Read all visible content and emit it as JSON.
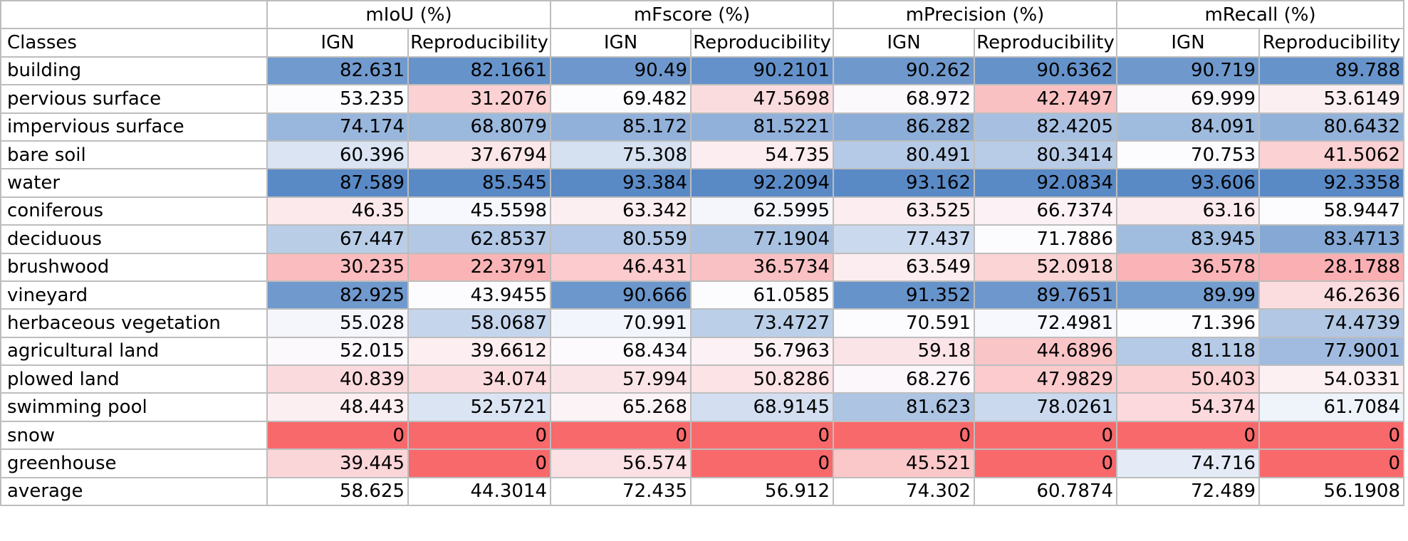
{
  "metric_groups": [
    "mIoU (%)",
    "mFscore (%)",
    "mPrecision (%)",
    "mRecall (%)"
  ],
  "row_header_label": "Classes",
  "sub_headers": [
    "IGN",
    "Reproducibility",
    "IGN",
    "Reproducibility",
    "IGN",
    "Reproducibility",
    "IGN",
    "Reproducibility"
  ],
  "rows": [
    {
      "label": "building",
      "values": [
        "82.631",
        "82.1661",
        "90.49",
        "90.2101",
        "90.262",
        "90.6362",
        "90.719",
        "89.788"
      ]
    },
    {
      "label": "pervious surface",
      "values": [
        "53.235",
        "31.2076",
        "69.482",
        "47.5698",
        "68.972",
        "42.7497",
        "69.999",
        "53.6149"
      ]
    },
    {
      "label": "impervious surface",
      "values": [
        "74.174",
        "68.8079",
        "85.172",
        "81.5221",
        "86.282",
        "82.4205",
        "84.091",
        "80.6432"
      ]
    },
    {
      "label": "bare soil",
      "values": [
        "60.396",
        "37.6794",
        "75.308",
        "54.735",
        "80.491",
        "80.3414",
        "70.753",
        "41.5062"
      ]
    },
    {
      "label": "water",
      "values": [
        "87.589",
        "85.545",
        "93.384",
        "92.2094",
        "93.162",
        "92.0834",
        "93.606",
        "92.3358"
      ]
    },
    {
      "label": "coniferous",
      "values": [
        "46.35",
        "45.5598",
        "63.342",
        "62.5995",
        "63.525",
        "66.7374",
        "63.16",
        "58.9447"
      ]
    },
    {
      "label": "deciduous",
      "values": [
        "67.447",
        "62.8537",
        "80.559",
        "77.1904",
        "77.437",
        "71.7886",
        "83.945",
        "83.4713"
      ]
    },
    {
      "label": "brushwood",
      "values": [
        "30.235",
        "22.3791",
        "46.431",
        "36.5734",
        "63.549",
        "52.0918",
        "36.578",
        "28.1788"
      ]
    },
    {
      "label": "vineyard",
      "values": [
        "82.925",
        "43.9455",
        "90.666",
        "61.0585",
        "91.352",
        "89.7651",
        "89.99",
        "46.2636"
      ]
    },
    {
      "label": "herbaceous vegetation",
      "values": [
        "55.028",
        "58.0687",
        "70.991",
        "73.4727",
        "70.591",
        "72.4981",
        "71.396",
        "74.4739"
      ]
    },
    {
      "label": "agricultural land",
      "values": [
        "52.015",
        "39.6612",
        "68.434",
        "56.7963",
        "59.18",
        "44.6896",
        "81.118",
        "77.9001"
      ]
    },
    {
      "label": "plowed land",
      "values": [
        "40.839",
        "34.074",
        "57.994",
        "50.8286",
        "68.276",
        "47.9829",
        "50.403",
        "54.0331"
      ]
    },
    {
      "label": "swimming pool",
      "values": [
        "48.443",
        "52.5721",
        "65.268",
        "68.9145",
        "81.623",
        "78.0261",
        "54.374",
        "61.7084"
      ]
    },
    {
      "label": "snow",
      "values": [
        "0",
        "0",
        "0",
        "0",
        "0",
        "0",
        "0",
        "0"
      ]
    },
    {
      "label": "greenhouse",
      "values": [
        "39.445",
        "0",
        "56.574",
        "0",
        "45.521",
        "0",
        "74.716",
        "0"
      ]
    },
    {
      "label": "average",
      "values": [
        "58.625",
        "44.3014",
        "72.435",
        "56.912",
        "74.302",
        "60.7874",
        "72.489",
        "56.1908"
      ]
    }
  ],
  "colors": {
    "low": "#f8696b",
    "mid": "#fcfcff",
    "high": "#5a8ac6",
    "grid": "#bdbdbd"
  }
}
